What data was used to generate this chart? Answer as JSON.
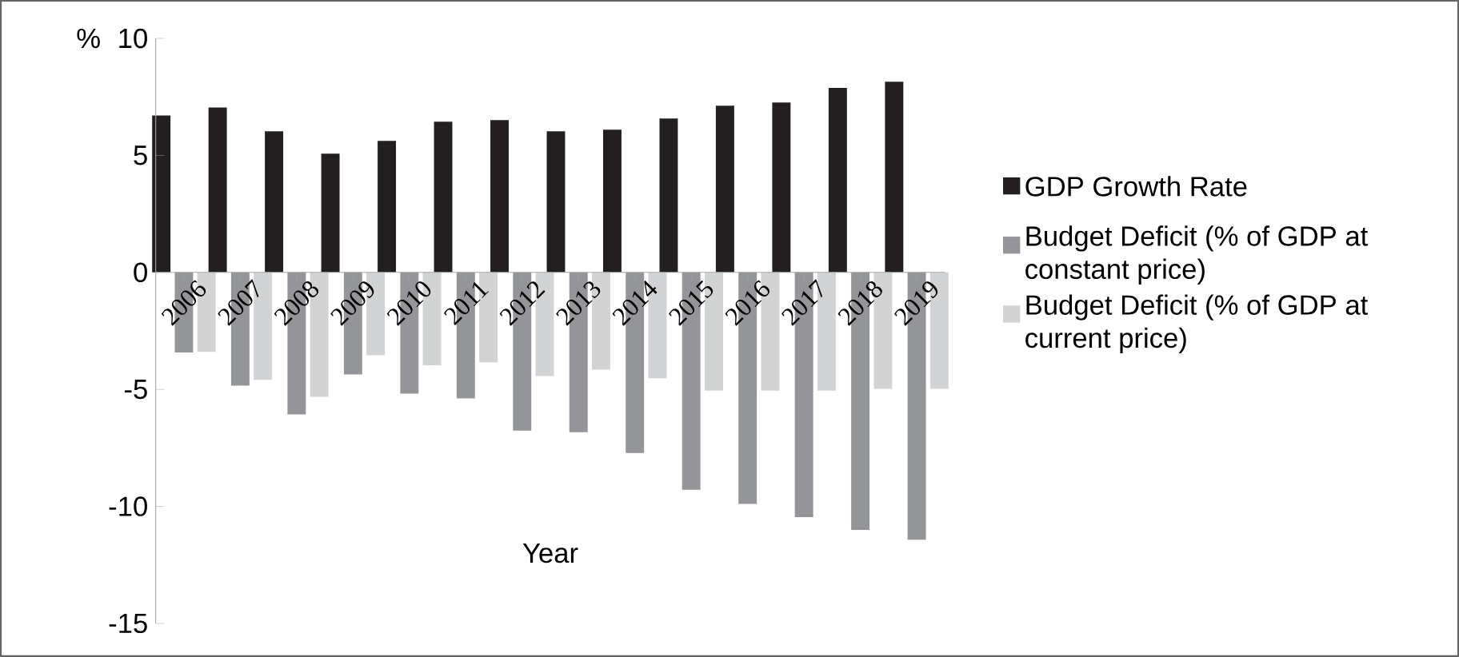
{
  "chart_data": {
    "type": "bar",
    "xlabel": "Year",
    "ylabel": "%",
    "categories": [
      "2006",
      "2007",
      "2008",
      "2009",
      "2010",
      "2011",
      "2012",
      "2013",
      "2014",
      "2015",
      "2016",
      "2017",
      "2018",
      "2019"
    ],
    "series": [
      {
        "name": "GDP Growth Rate",
        "color": "#231f20",
        "values": [
          6.7,
          7.05,
          6.03,
          5.07,
          5.62,
          6.44,
          6.51,
          6.03,
          6.1,
          6.58,
          7.12,
          7.26,
          7.88,
          8.15
        ]
      },
      {
        "name": "Budget Deficit (% of GDP at constant price)",
        "color": "#939598",
        "values": [
          -3.42,
          -4.84,
          -6.07,
          -4.36,
          -5.18,
          -5.39,
          -6.76,
          -6.83,
          -7.72,
          -9.29,
          -9.89,
          -10.46,
          -11.0,
          -11.42
        ]
      },
      {
        "name": "Budget Deficit (% of GDP at current price)",
        "color": "#d1d3d4",
        "values": [
          -3.4,
          -4.59,
          -5.32,
          -3.54,
          -3.97,
          -3.84,
          -4.43,
          -4.16,
          -4.52,
          -5.05,
          -5.05,
          -5.05,
          -4.98,
          -4.98
        ]
      }
    ],
    "ylim": [
      -15,
      10
    ],
    "yticks": [
      -15,
      -10,
      -5,
      0,
      5,
      10
    ],
    "legend": "right",
    "grid": false
  }
}
